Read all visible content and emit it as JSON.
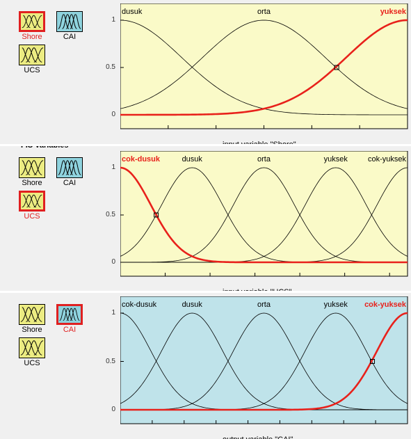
{
  "panels": [
    {
      "fis_title": "",
      "variables": [
        {
          "name": "Shore",
          "selected": true,
          "color": "#ecec82"
        },
        {
          "name": "CAI",
          "selected": false,
          "color": "#8fd3de"
        },
        {
          "name": "UCS",
          "selected": false,
          "color": "#ecec82"
        }
      ],
      "chart_data": {
        "type": "line",
        "xlabel": "input variable \"Shore\"",
        "xlim": [
          0,
          30
        ],
        "ylim": [
          0,
          1
        ],
        "x_ticks": [
          "0",
          "5",
          "10",
          "15",
          "20",
          "25",
          "30"
        ],
        "y_ticks": [
          "0",
          "0.5",
          "1"
        ],
        "background": "#fafac8",
        "series": [
          {
            "name": "dusuk",
            "shape": "gaussian",
            "center": 0,
            "sigma": 6.4,
            "highlight": false
          },
          {
            "name": "orta",
            "shape": "gaussian",
            "center": 15,
            "sigma": 6.4,
            "highlight": false
          },
          {
            "name": "yuksek",
            "shape": "gaussian",
            "center": 30,
            "sigma": 6.4,
            "highlight": true
          }
        ],
        "marker": {
          "x": 22.6,
          "y": 0.5
        }
      }
    },
    {
      "fis_title": "FIS Variables",
      "variables": [
        {
          "name": "Shore",
          "selected": false,
          "color": "#ecec82"
        },
        {
          "name": "CAI",
          "selected": false,
          "color": "#8fd3de"
        },
        {
          "name": "UCS",
          "selected": true,
          "color": "#ecec82"
        }
      ],
      "chart_data": {
        "type": "line",
        "xlabel": "input variable \"UCS\"",
        "xlim": [
          0,
          64
        ],
        "ylim": [
          0,
          1
        ],
        "x_ticks": [
          "0",
          "10",
          "20",
          "30",
          "40",
          "50",
          "60"
        ],
        "y_ticks": [
          "0",
          "0.5",
          "1"
        ],
        "background": "#fafac8",
        "series": [
          {
            "name": "cok-dusuk",
            "shape": "gaussian",
            "center": 0,
            "sigma": 6.8,
            "highlight": true
          },
          {
            "name": "dusuk",
            "shape": "gaussian",
            "center": 16,
            "sigma": 6.8,
            "highlight": false
          },
          {
            "name": "orta",
            "shape": "gaussian",
            "center": 32,
            "sigma": 6.8,
            "highlight": false
          },
          {
            "name": "yuksek",
            "shape": "gaussian",
            "center": 48,
            "sigma": 6.8,
            "highlight": false
          },
          {
            "name": "cok-yuksek",
            "shape": "gaussian",
            "center": 64,
            "sigma": 6.8,
            "highlight": false
          }
        ],
        "marker": {
          "x": 8,
          "y": 0.5
        }
      }
    },
    {
      "fis_title": "",
      "variables": [
        {
          "name": "Shore",
          "selected": false,
          "color": "#ecec82"
        },
        {
          "name": "CAI",
          "selected": true,
          "color": "#8fd3de"
        },
        {
          "name": "UCS",
          "selected": false,
          "color": "#ecec82"
        }
      ],
      "chart_data": {
        "type": "line",
        "xlabel": "output variable \"CAI\"",
        "xlim": [
          0,
          0.09
        ],
        "ylim": [
          0,
          1
        ],
        "x_ticks": [
          "0",
          "0.01",
          "0.02",
          "0.03",
          "0.04",
          "0.05",
          "0.06",
          "0.07",
          "0.08",
          "0.09"
        ],
        "y_ticks": [
          "0",
          "0.5",
          "1"
        ],
        "background": "#bfe3ea",
        "series": [
          {
            "name": "cok-dusuk",
            "shape": "gaussian",
            "center": 0,
            "sigma": 0.0096,
            "highlight": false
          },
          {
            "name": "dusuk",
            "shape": "gaussian",
            "center": 0.0225,
            "sigma": 0.0096,
            "highlight": false
          },
          {
            "name": "orta",
            "shape": "gaussian",
            "center": 0.045,
            "sigma": 0.0096,
            "highlight": false
          },
          {
            "name": "yuksek",
            "shape": "gaussian",
            "center": 0.0675,
            "sigma": 0.0096,
            "highlight": false
          },
          {
            "name": "cok-yuksek",
            "shape": "gaussian",
            "center": 0.09,
            "sigma": 0.0096,
            "highlight": true
          }
        ],
        "marker": {
          "x": 0.079,
          "y": 0.5
        }
      }
    }
  ]
}
